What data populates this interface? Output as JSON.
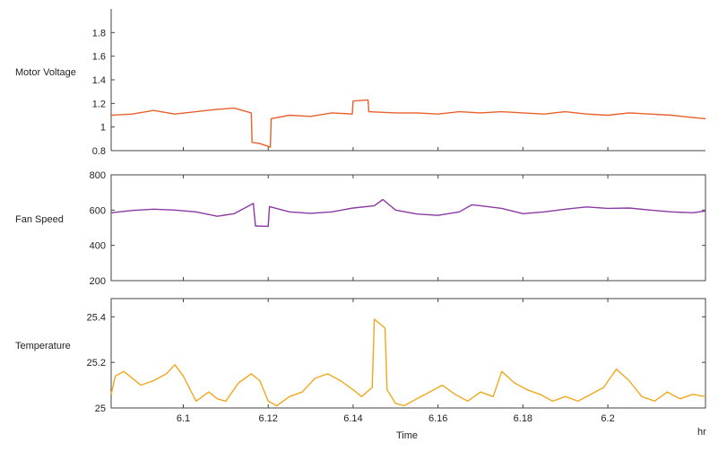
{
  "chart_data": {
    "type": "line",
    "xlabel": "Time",
    "x_unit": "hr",
    "xlim": [
      6.083,
      6.223
    ],
    "x_ticks": [
      6.1,
      6.12,
      6.14,
      6.16,
      6.18,
      6.2
    ],
    "x_tick_labels": [
      "6.1",
      "6.12",
      "6.14",
      "6.16",
      "6.18",
      "6.2"
    ],
    "grid": false,
    "panels": [
      {
        "ylabel": "Motor Voltage",
        "ylim": [
          0.8,
          2.0
        ],
        "y_ticks": [
          0.8,
          1,
          1.2,
          1.4,
          1.6,
          1.8
        ],
        "y_tick_labels": [
          "0.8",
          "1",
          "1.2",
          "1.4",
          "1.6",
          "1.8"
        ],
        "color": "#e8602c",
        "x": [
          6.083,
          6.088,
          6.093,
          6.098,
          6.103,
          6.108,
          6.112,
          6.116,
          6.1162,
          6.118,
          6.1205,
          6.1207,
          6.125,
          6.13,
          6.135,
          6.1398,
          6.14,
          6.1435,
          6.1437,
          6.15,
          6.155,
          6.16,
          6.165,
          6.17,
          6.175,
          6.18,
          6.185,
          6.19,
          6.195,
          6.2,
          6.205,
          6.21,
          6.215,
          6.22,
          6.223
        ],
        "y": [
          1.1,
          1.11,
          1.14,
          1.11,
          1.13,
          1.15,
          1.16,
          1.12,
          0.87,
          0.86,
          0.83,
          1.07,
          1.1,
          1.09,
          1.12,
          1.11,
          1.22,
          1.23,
          1.13,
          1.12,
          1.12,
          1.11,
          1.13,
          1.12,
          1.13,
          1.12,
          1.11,
          1.13,
          1.11,
          1.1,
          1.12,
          1.11,
          1.1,
          1.08,
          1.07
        ]
      },
      {
        "ylabel": "Fan Speed",
        "ylim": [
          200,
          800
        ],
        "y_ticks": [
          200,
          400,
          600,
          800
        ],
        "y_tick_labels": [
          "200",
          "400",
          "600",
          "800"
        ],
        "color": "#8a3aa3",
        "x": [
          6.083,
          6.088,
          6.093,
          6.098,
          6.103,
          6.108,
          6.112,
          6.1165,
          6.117,
          6.12,
          6.1203,
          6.125,
          6.13,
          6.135,
          6.14,
          6.145,
          6.147,
          6.15,
          6.155,
          6.16,
          6.165,
          6.168,
          6.17,
          6.175,
          6.18,
          6.185,
          6.19,
          6.195,
          6.2,
          6.205,
          6.21,
          6.215,
          6.22,
          6.223
        ],
        "y": [
          585,
          598,
          605,
          600,
          590,
          565,
          580,
          638,
          510,
          508,
          620,
          590,
          582,
          590,
          612,
          625,
          660,
          600,
          578,
          570,
          590,
          630,
          625,
          610,
          580,
          590,
          605,
          618,
          610,
          612,
          600,
          590,
          585,
          595
        ]
      },
      {
        "ylabel": "Temperature",
        "ylim": [
          25.0,
          25.48
        ],
        "y_ticks": [
          25,
          25.2,
          25.4
        ],
        "y_tick_labels": [
          "25",
          "25.2",
          "25.4"
        ],
        "color": "#f0a81e",
        "x": [
          6.083,
          6.084,
          6.086,
          6.09,
          6.093,
          6.096,
          6.098,
          6.1,
          6.103,
          6.106,
          6.108,
          6.11,
          6.113,
          6.116,
          6.118,
          6.12,
          6.122,
          6.125,
          6.128,
          6.131,
          6.134,
          6.137,
          6.14,
          6.142,
          6.1445,
          6.145,
          6.1475,
          6.148,
          6.15,
          6.152,
          6.155,
          6.158,
          6.161,
          6.164,
          6.167,
          6.17,
          6.173,
          6.175,
          6.178,
          6.181,
          6.184,
          6.187,
          6.19,
          6.193,
          6.196,
          6.199,
          6.202,
          6.205,
          6.208,
          6.211,
          6.214,
          6.217,
          6.22,
          6.223
        ],
        "y": [
          25.06,
          25.14,
          25.16,
          25.1,
          25.12,
          25.15,
          25.19,
          25.14,
          25.03,
          25.07,
          25.04,
          25.03,
          25.11,
          25.15,
          25.12,
          25.03,
          25.01,
          25.05,
          25.07,
          25.13,
          25.15,
          25.12,
          25.08,
          25.05,
          25.09,
          25.39,
          25.35,
          25.08,
          25.02,
          25.01,
          25.04,
          25.07,
          25.1,
          25.06,
          25.03,
          25.07,
          25.05,
          25.16,
          25.11,
          25.08,
          25.06,
          25.03,
          25.05,
          25.03,
          25.06,
          25.09,
          25.17,
          25.12,
          25.05,
          25.03,
          25.07,
          25.04,
          25.06,
          25.05
        ]
      }
    ]
  }
}
